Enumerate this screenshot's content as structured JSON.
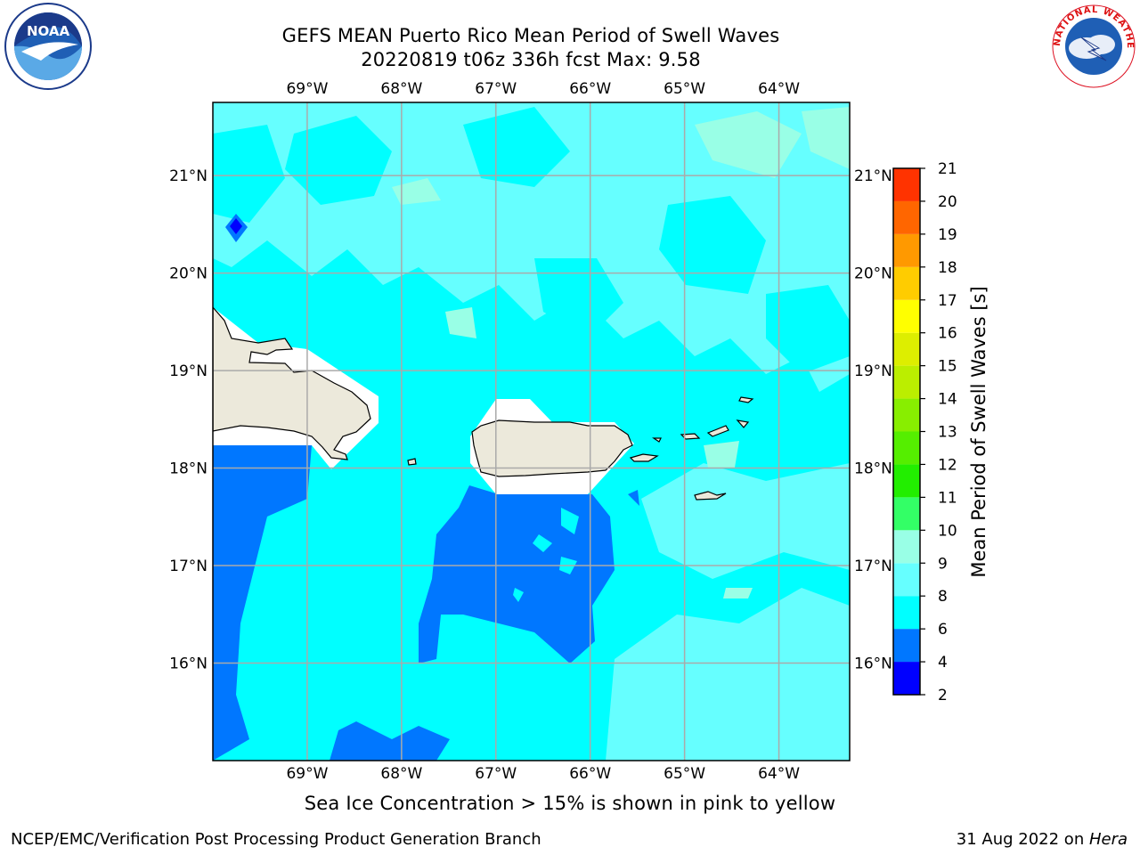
{
  "title": {
    "line1": "GEFS MEAN Puerto Rico Mean Period of Swell Waves",
    "line2": "20220819 t06z 336h fcst   Max: 9.58"
  },
  "logos": {
    "noaa": {
      "text": "NOAA",
      "ring_text": "NATIONAL OCEANIC AND ATMOSPHERIC ADMINISTRATION · U.S. DEPARTMENT OF COMMERCE",
      "icon": "noaa-seagull-logo"
    },
    "nws": {
      "ring_text": "NATIONAL WEATHER SERVICE",
      "icon": "nws-lightning-cloud-logo"
    }
  },
  "map": {
    "lon_labels": [
      "69°W",
      "68°W",
      "67°W",
      "66°W",
      "65°W",
      "64°W"
    ],
    "lat_labels": [
      "21°N",
      "20°N",
      "19°N",
      "18°N",
      "17°N",
      "16°N"
    ],
    "lon_values": [
      -69,
      -68,
      -67,
      -66,
      -65,
      -64
    ],
    "lat_values": [
      21,
      20,
      19,
      18,
      17,
      16
    ],
    "lon_range": [
      -70.0,
      -63.25
    ],
    "lat_range": [
      15.0,
      21.75
    ],
    "land_color": "#ece9db",
    "grid_color": "#aaaaaa",
    "background_color": "#00ffff"
  },
  "colorbar": {
    "label": "Mean Period of Swell Waves [s]",
    "ticks": [
      "2",
      "4",
      "6",
      "8",
      "9",
      "10",
      "11",
      "12",
      "13",
      "14",
      "15",
      "16",
      "17",
      "18",
      "19",
      "20",
      "21"
    ],
    "colors": [
      "#0000ff",
      "#0077ff",
      "#00ffff",
      "#66ffff",
      "#99ffe6",
      "#33ff66",
      "#22ee00",
      "#55ee00",
      "#88ee00",
      "#bbee00",
      "#ddee00",
      "#ffff00",
      "#ffcc00",
      "#ff9900",
      "#ff6600",
      "#ff3300",
      "#ff0000"
    ]
  },
  "caption": "Sea Ice Concentration > 15% is shown in pink to yellow",
  "footer": {
    "left": "NCEP/EMC/Verification Post Processing Product Generation Branch",
    "right_date": "31 Aug 2022 on ",
    "right_host": "Hera"
  }
}
